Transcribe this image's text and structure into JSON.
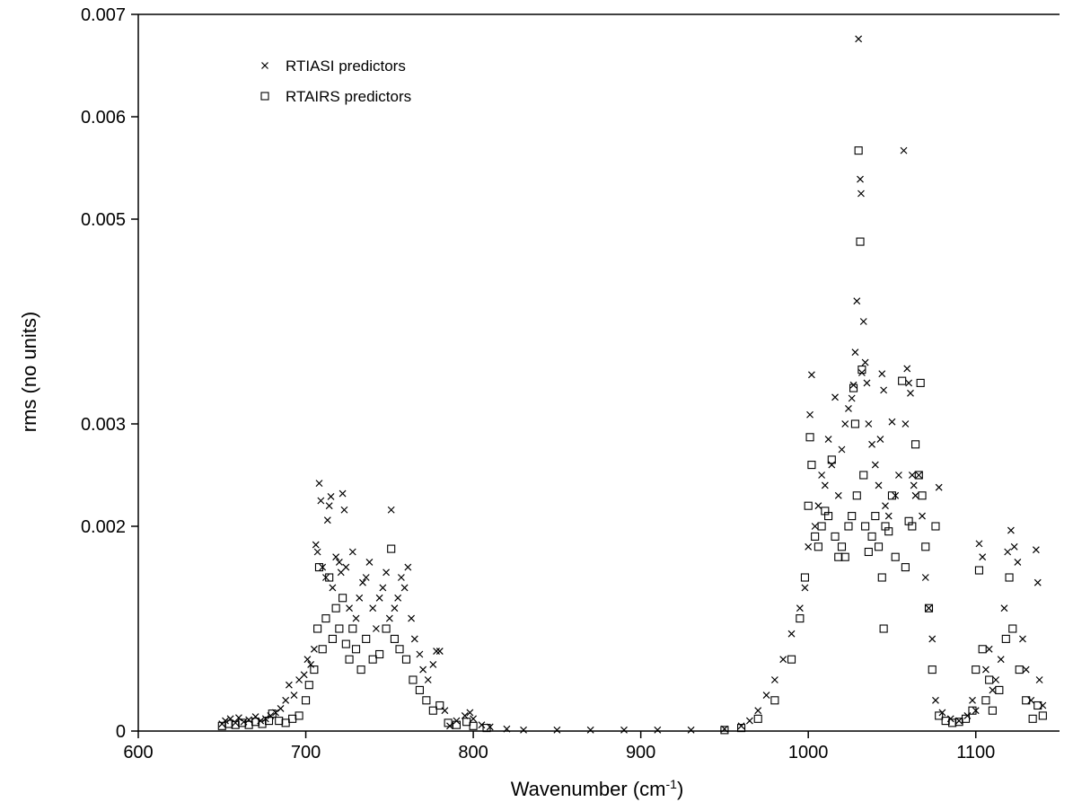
{
  "chart_data": {
    "type": "scatter",
    "xlabel": "Wavenumber (cm",
    "xlabel_sup": "-1",
    "xlabel_close": ")",
    "ylabel": "rms (no units)",
    "xlim": [
      600,
      1150
    ],
    "ylim": [
      0,
      0.007
    ],
    "xticks": [
      600,
      700,
      800,
      900,
      1000,
      1100
    ],
    "yticks": [
      0,
      0.002,
      0.003,
      0.005,
      0.006,
      0.007
    ],
    "ytick_labels": [
      "0",
      "0.002",
      "0.003",
      "0.005",
      "0.006",
      "0.007"
    ],
    "grid": false,
    "legend_position": "top-left",
    "series": [
      {
        "name": "RTIASI predictors",
        "marker": "x",
        "color": "#000000",
        "points": [
          [
            650,
            7e-05
          ],
          [
            652,
            0.0001
          ],
          [
            655,
            0.00012
          ],
          [
            658,
            8e-05
          ],
          [
            660,
            0.00013
          ],
          [
            663,
            9e-05
          ],
          [
            666,
            0.00011
          ],
          [
            670,
            0.00014
          ],
          [
            673,
            0.0001
          ],
          [
            676,
            0.00012
          ],
          [
            679,
            0.00015
          ],
          [
            682,
            0.00018
          ],
          [
            685,
            0.00022
          ],
          [
            688,
            0.0003
          ],
          [
            690,
            0.00045
          ],
          [
            693,
            0.00035
          ],
          [
            696,
            0.0005
          ],
          [
            699,
            0.00055
          ],
          [
            701,
            0.0007
          ],
          [
            703,
            0.00065
          ],
          [
            705,
            0.0008
          ],
          [
            706,
            0.00182
          ],
          [
            707,
            0.00175
          ],
          [
            708,
            0.00242
          ],
          [
            709,
            0.00225
          ],
          [
            710,
            0.0016
          ],
          [
            712,
            0.0015
          ],
          [
            713,
            0.00206
          ],
          [
            714,
            0.0022
          ],
          [
            715,
            0.00229
          ],
          [
            716,
            0.0014
          ],
          [
            718,
            0.0017
          ],
          [
            720,
            0.00165
          ],
          [
            721,
            0.00155
          ],
          [
            722,
            0.00232
          ],
          [
            723,
            0.00216
          ],
          [
            724,
            0.0016
          ],
          [
            726,
            0.0012
          ],
          [
            728,
            0.00175
          ],
          [
            730,
            0.0011
          ],
          [
            732,
            0.0013
          ],
          [
            734,
            0.00145
          ],
          [
            736,
            0.0015
          ],
          [
            738,
            0.00165
          ],
          [
            740,
            0.0012
          ],
          [
            742,
            0.001
          ],
          [
            744,
            0.0013
          ],
          [
            746,
            0.0014
          ],
          [
            748,
            0.00155
          ],
          [
            750,
            0.0011
          ],
          [
            751,
            0.00216
          ],
          [
            753,
            0.0012
          ],
          [
            755,
            0.0013
          ],
          [
            757,
            0.0015
          ],
          [
            759,
            0.0014
          ],
          [
            761,
            0.0016
          ],
          [
            763,
            0.0011
          ],
          [
            765,
            0.0009
          ],
          [
            768,
            0.00075
          ],
          [
            770,
            0.0006
          ],
          [
            773,
            0.0005
          ],
          [
            776,
            0.00065
          ],
          [
            778,
            0.00078
          ],
          [
            780,
            0.00078
          ],
          [
            783,
            0.0002
          ],
          [
            786,
            5e-05
          ],
          [
            790,
            0.0001
          ],
          [
            795,
            0.00015
          ],
          [
            798,
            0.00018
          ],
          [
            800,
            0.00012
          ],
          [
            805,
            6e-05
          ],
          [
            810,
            4e-05
          ],
          [
            820,
            2e-05
          ],
          [
            830,
            1e-05
          ],
          [
            850,
            1e-05
          ],
          [
            870,
            1e-05
          ],
          [
            890,
            1e-05
          ],
          [
            910,
            1e-05
          ],
          [
            930,
            1e-05
          ],
          [
            950,
            2e-05
          ],
          [
            960,
            5e-05
          ],
          [
            965,
            0.0001
          ],
          [
            970,
            0.0002
          ],
          [
            975,
            0.00035
          ],
          [
            980,
            0.0005
          ],
          [
            985,
            0.0007
          ],
          [
            990,
            0.00095
          ],
          [
            995,
            0.0012
          ],
          [
            998,
            0.0014
          ],
          [
            1000,
            0.0018
          ],
          [
            1001,
            0.00309
          ],
          [
            1002,
            0.00348
          ],
          [
            1004,
            0.002
          ],
          [
            1006,
            0.0022
          ],
          [
            1008,
            0.0025
          ],
          [
            1010,
            0.0024
          ],
          [
            1012,
            0.00285
          ],
          [
            1014,
            0.0026
          ],
          [
            1016,
            0.00326
          ],
          [
            1018,
            0.0023
          ],
          [
            1020,
            0.00275
          ],
          [
            1022,
            0.003
          ],
          [
            1024,
            0.00315
          ],
          [
            1026,
            0.00325
          ],
          [
            1027,
            0.00338
          ],
          [
            1028,
            0.0037
          ],
          [
            1029,
            0.0042
          ],
          [
            1030,
            0.00676
          ],
          [
            1031,
            0.00539
          ],
          [
            1031.5,
            0.00525
          ],
          [
            1032,
            0.0035
          ],
          [
            1033,
            0.004
          ],
          [
            1034,
            0.0036
          ],
          [
            1035,
            0.0034
          ],
          [
            1036,
            0.003
          ],
          [
            1038,
            0.0028
          ],
          [
            1040,
            0.0026
          ],
          [
            1042,
            0.0024
          ],
          [
            1043,
            0.00285
          ],
          [
            1044,
            0.00349
          ],
          [
            1045,
            0.00333
          ],
          [
            1046,
            0.0022
          ],
          [
            1048,
            0.0021
          ],
          [
            1050,
            0.00302
          ],
          [
            1052,
            0.0023
          ],
          [
            1054,
            0.0025
          ],
          [
            1057,
            0.00567
          ],
          [
            1058,
            0.003
          ],
          [
            1059,
            0.00354
          ],
          [
            1060,
            0.0034
          ],
          [
            1061,
            0.0033
          ],
          [
            1062,
            0.0025
          ],
          [
            1063,
            0.0024
          ],
          [
            1064,
            0.0023
          ],
          [
            1066,
            0.0025
          ],
          [
            1068,
            0.0021
          ],
          [
            1070,
            0.0015
          ],
          [
            1072,
            0.0012
          ],
          [
            1074,
            0.0009
          ],
          [
            1076,
            0.0003
          ],
          [
            1078,
            0.00238
          ],
          [
            1080,
            0.00018
          ],
          [
            1085,
            0.00012
          ],
          [
            1090,
            0.0001
          ],
          [
            1095,
            0.00015
          ],
          [
            1098,
            0.0003
          ],
          [
            1100,
            0.0002
          ],
          [
            1102,
            0.00183
          ],
          [
            1104,
            0.0017
          ],
          [
            1106,
            0.0006
          ],
          [
            1108,
            0.0008
          ],
          [
            1110,
            0.0004
          ],
          [
            1112,
            0.0005
          ],
          [
            1115,
            0.0007
          ],
          [
            1117,
            0.0012
          ],
          [
            1119,
            0.00175
          ],
          [
            1121,
            0.00196
          ],
          [
            1123,
            0.0018
          ],
          [
            1125,
            0.00165
          ],
          [
            1128,
            0.0009
          ],
          [
            1130,
            0.0006
          ],
          [
            1133,
            0.0003
          ],
          [
            1136,
            0.00177
          ],
          [
            1137,
            0.00145
          ],
          [
            1138,
            0.0005
          ],
          [
            1140,
            0.00025
          ]
        ]
      },
      {
        "name": "RTAIRS predictors",
        "marker": "square",
        "color": "#000000",
        "points": [
          [
            650,
            5e-05
          ],
          [
            654,
            7e-05
          ],
          [
            658,
            6e-05
          ],
          [
            662,
            8e-05
          ],
          [
            666,
            6e-05
          ],
          [
            670,
            9e-05
          ],
          [
            674,
            7e-05
          ],
          [
            678,
            0.0001
          ],
          [
            680,
            0.00017
          ],
          [
            684,
            0.0001
          ],
          [
            688,
            8e-05
          ],
          [
            692,
            0.00012
          ],
          [
            696,
            0.00015
          ],
          [
            700,
            0.0003
          ],
          [
            702,
            0.00045
          ],
          [
            705,
            0.0006
          ],
          [
            707,
            0.001
          ],
          [
            708,
            0.0016
          ],
          [
            710,
            0.0008
          ],
          [
            712,
            0.0011
          ],
          [
            714,
            0.0015
          ],
          [
            716,
            0.0009
          ],
          [
            718,
            0.0012
          ],
          [
            720,
            0.001
          ],
          [
            722,
            0.0013
          ],
          [
            724,
            0.00085
          ],
          [
            726,
            0.0007
          ],
          [
            728,
            0.001
          ],
          [
            730,
            0.0008
          ],
          [
            733,
            0.0006
          ],
          [
            736,
            0.0009
          ],
          [
            740,
            0.0007
          ],
          [
            744,
            0.00075
          ],
          [
            748,
            0.001
          ],
          [
            751,
            0.00178
          ],
          [
            753,
            0.0009
          ],
          [
            756,
            0.0008
          ],
          [
            760,
            0.0007
          ],
          [
            764,
            0.0005
          ],
          [
            768,
            0.0004
          ],
          [
            772,
            0.0003
          ],
          [
            776,
            0.0002
          ],
          [
            780,
            0.00025
          ],
          [
            785,
            8e-05
          ],
          [
            790,
            6e-05
          ],
          [
            796,
            9e-05
          ],
          [
            800,
            5e-05
          ],
          [
            808,
            3e-05
          ],
          [
            950,
            1e-05
          ],
          [
            960,
            3e-05
          ],
          [
            970,
            0.00012
          ],
          [
            980,
            0.0003
          ],
          [
            990,
            0.0007
          ],
          [
            995,
            0.0011
          ],
          [
            998,
            0.0015
          ],
          [
            1000,
            0.0022
          ],
          [
            1001,
            0.00287
          ],
          [
            1002,
            0.0026
          ],
          [
            1004,
            0.0019
          ],
          [
            1006,
            0.0018
          ],
          [
            1008,
            0.002
          ],
          [
            1010,
            0.00215
          ],
          [
            1012,
            0.0021
          ],
          [
            1014,
            0.00265
          ],
          [
            1016,
            0.0019
          ],
          [
            1018,
            0.0017
          ],
          [
            1020,
            0.0018
          ],
          [
            1022,
            0.0017
          ],
          [
            1024,
            0.002
          ],
          [
            1026,
            0.0021
          ],
          [
            1027,
            0.00335
          ],
          [
            1028,
            0.003
          ],
          [
            1029,
            0.0023
          ],
          [
            1030,
            0.00567
          ],
          [
            1031,
            0.00478
          ],
          [
            1032,
            0.00353
          ],
          [
            1033,
            0.0025
          ],
          [
            1034,
            0.002
          ],
          [
            1036,
            0.00175
          ],
          [
            1038,
            0.0019
          ],
          [
            1040,
            0.0021
          ],
          [
            1042,
            0.0018
          ],
          [
            1044,
            0.0015
          ],
          [
            1045,
            0.001
          ],
          [
            1046,
            0.002
          ],
          [
            1048,
            0.00195
          ],
          [
            1050,
            0.0023
          ],
          [
            1052,
            0.0017
          ],
          [
            1056,
            0.00342
          ],
          [
            1058,
            0.0016
          ],
          [
            1060,
            0.00205
          ],
          [
            1062,
            0.002
          ],
          [
            1064,
            0.0028
          ],
          [
            1066,
            0.0025
          ],
          [
            1067,
            0.0034
          ],
          [
            1068,
            0.0023
          ],
          [
            1070,
            0.0018
          ],
          [
            1072,
            0.0012
          ],
          [
            1074,
            0.0006
          ],
          [
            1076,
            0.002
          ],
          [
            1078,
            0.00015
          ],
          [
            1082,
            0.0001
          ],
          [
            1086,
            8e-05
          ],
          [
            1090,
            9e-05
          ],
          [
            1094,
            0.00012
          ],
          [
            1098,
            0.0002
          ],
          [
            1100,
            0.0006
          ],
          [
            1102,
            0.00157
          ],
          [
            1104,
            0.0008
          ],
          [
            1106,
            0.0003
          ],
          [
            1108,
            0.0005
          ],
          [
            1110,
            0.0002
          ],
          [
            1114,
            0.0004
          ],
          [
            1118,
            0.0009
          ],
          [
            1120,
            0.0015
          ],
          [
            1122,
            0.001
          ],
          [
            1126,
            0.0006
          ],
          [
            1130,
            0.0003
          ],
          [
            1134,
            0.00012
          ],
          [
            1137,
            0.00025
          ],
          [
            1140,
            0.00015
          ]
        ]
      }
    ]
  }
}
